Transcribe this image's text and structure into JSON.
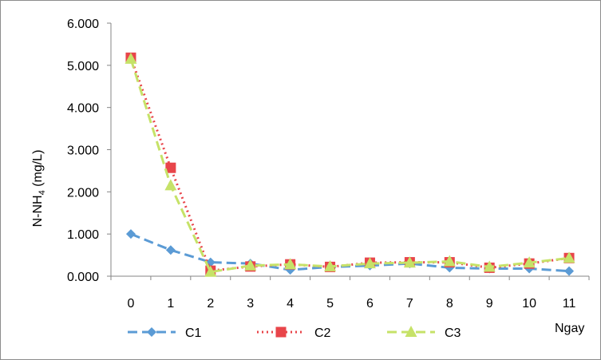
{
  "chart_data": {
    "type": "line",
    "title": "",
    "xlabel": "Ngay",
    "ylabel": "N-NH",
    "ylabel_sub": "4",
    "ylabel_tail": " (mg/L)",
    "x": [
      0,
      1,
      2,
      3,
      4,
      5,
      6,
      7,
      8,
      9,
      10,
      11
    ],
    "x_tick_labels": [
      "0",
      "1",
      "2",
      "3",
      "4",
      "5",
      "6",
      "7",
      "8",
      "9",
      "10",
      "11"
    ],
    "ylim": [
      0,
      6
    ],
    "y_tick_labels": [
      "0.000",
      "1.000",
      "2.000",
      "3.000",
      "4.000",
      "5.000",
      "6.000"
    ],
    "grid": false,
    "legend_position": "bottom",
    "series": [
      {
        "name": "C1",
        "color": "#5b9bd5",
        "line": "dashed",
        "marker": "diamond",
        "values": [
          1.0,
          0.62,
          0.33,
          0.3,
          0.15,
          0.22,
          0.25,
          0.3,
          0.2,
          0.18,
          0.18,
          0.12
        ]
      },
      {
        "name": "C2",
        "color": "#e8454a",
        "line": "dotted",
        "marker": "square",
        "values": [
          5.18,
          2.57,
          0.13,
          0.23,
          0.28,
          0.22,
          0.32,
          0.33,
          0.33,
          0.2,
          0.3,
          0.43
        ]
      },
      {
        "name": "C3",
        "color": "#c6e268",
        "line": "dashed",
        "marker": "triangle",
        "values": [
          5.15,
          2.15,
          0.1,
          0.25,
          0.28,
          0.23,
          0.3,
          0.32,
          0.35,
          0.22,
          0.32,
          0.43
        ]
      }
    ]
  }
}
